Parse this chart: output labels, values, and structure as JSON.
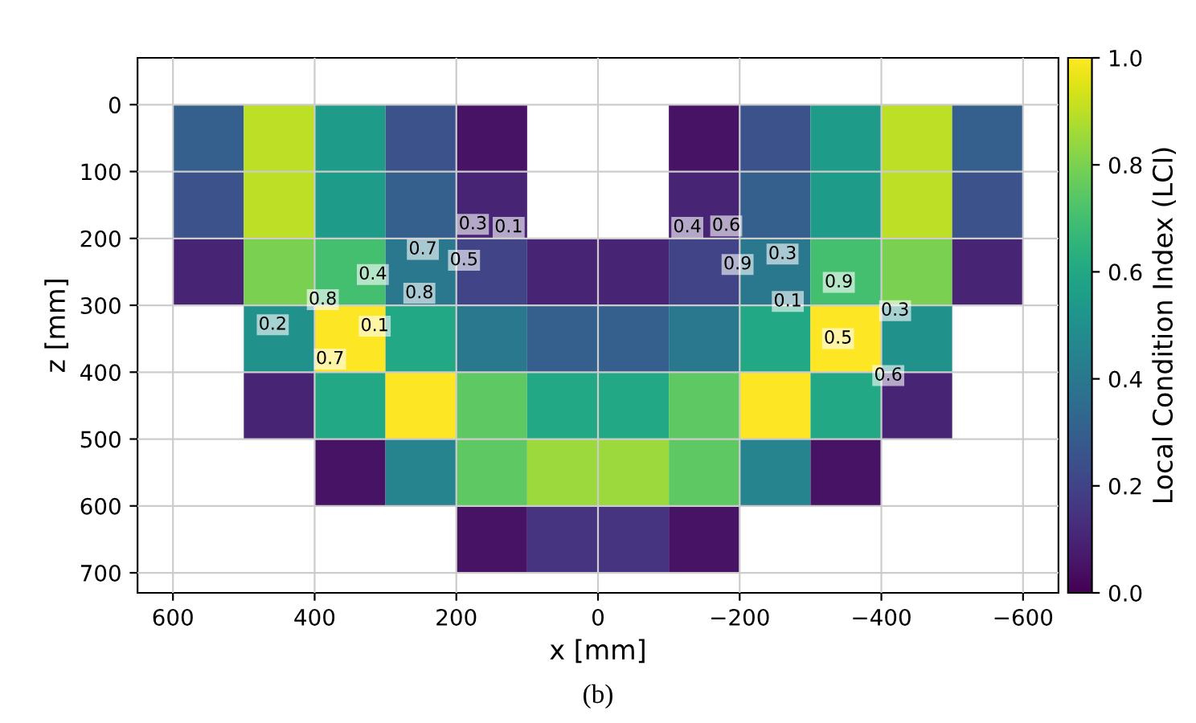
{
  "chart_data": {
    "type": "heatmap",
    "xlabel": "x [mm]",
    "ylabel": "z [mm]",
    "clabel": "Local Condition Index (LCI)",
    "x": [
      550,
      450,
      350,
      250,
      150,
      50,
      -50,
      -150,
      -250,
      -350,
      -450,
      -550
    ],
    "y": [
      50,
      150,
      250,
      350,
      450,
      550,
      650
    ],
    "cells": [
      [
        0.3,
        0.9,
        0.55,
        0.25,
        0.05,
        null,
        null,
        0.05,
        0.25,
        0.55,
        0.9,
        0.3
      ],
      [
        0.25,
        0.9,
        0.55,
        0.3,
        0.1,
        null,
        null,
        0.1,
        0.3,
        0.55,
        0.9,
        0.25
      ],
      [
        0.1,
        0.8,
        0.7,
        0.4,
        0.2,
        0.1,
        0.1,
        0.2,
        0.4,
        0.7,
        0.8,
        0.1
      ],
      [
        null,
        0.5,
        1.0,
        0.6,
        0.4,
        0.3,
        0.3,
        0.4,
        0.6,
        1.0,
        0.5,
        null
      ],
      [
        null,
        0.1,
        0.6,
        1.0,
        0.75,
        0.6,
        0.6,
        0.75,
        1.0,
        0.6,
        0.1,
        null
      ],
      [
        null,
        null,
        0.05,
        0.45,
        0.75,
        0.85,
        0.85,
        0.75,
        0.45,
        0.05,
        null,
        null
      ],
      [
        null,
        null,
        null,
        null,
        0.05,
        0.15,
        0.15,
        0.05,
        null,
        null,
        null,
        null
      ]
    ],
    "clim": [
      0,
      1
    ],
    "cticks": [
      {
        "value": 0,
        "label": "0.0"
      },
      0.2,
      0.4,
      0.6,
      0.8,
      {
        "value": 1,
        "label": "1.0"
      }
    ],
    "xlim": [
      650,
      -650
    ],
    "xticks": [
      600,
      400,
      200,
      0,
      {
        "value": -200,
        "label": "−200"
      },
      {
        "value": -400,
        "label": "−400"
      },
      {
        "value": -600,
        "label": "−600"
      }
    ],
    "ylim": [
      730,
      -70
    ],
    "yticks": [
      0,
      100,
      200,
      300,
      400,
      500,
      600,
      700
    ],
    "grid": true,
    "annotations": [
      "0.1",
      "0.3",
      "0.5",
      "0.7",
      "0.8",
      "0.4",
      "0.1",
      "0.8",
      "0.7",
      "0.2",
      "0.4",
      "0.6",
      "0.9",
      "0.3",
      "0.1",
      "0.9",
      "0.5",
      "0.3",
      "0.6",
      "(b)"
    ]
  }
}
